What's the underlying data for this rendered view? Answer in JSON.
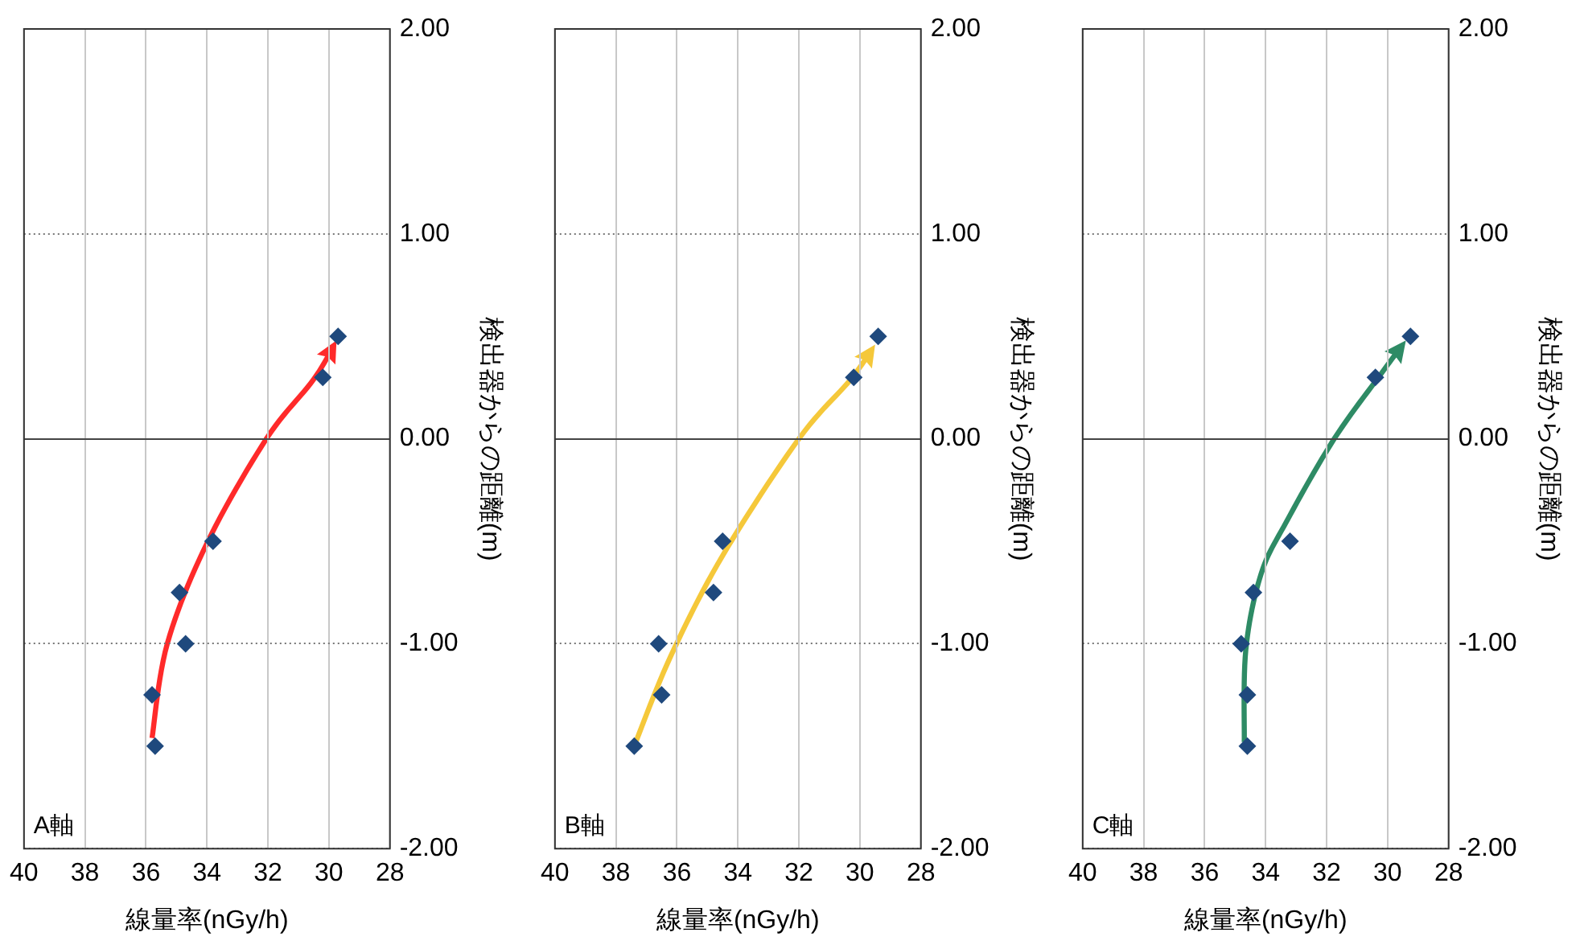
{
  "chart_data": [
    {
      "type": "scatter",
      "title": "A軸",
      "xlabel": "線量率(nGy/h)",
      "ylabel": "検出器からの距離(m)",
      "xlim": [
        40,
        28
      ],
      "xticks": [
        40,
        38,
        36,
        34,
        32,
        30,
        28
      ],
      "ylim": [
        -2,
        2
      ],
      "yticks": [
        {
          "value": -2,
          "label": "-2.00"
        },
        {
          "value": -1,
          "label": "-1.00"
        },
        {
          "value": 0,
          "label": "0.00"
        },
        {
          "value": 1,
          "label": "1.00"
        },
        {
          "value": 2,
          "label": "2.00"
        }
      ],
      "grid": true,
      "legend": false,
      "series": [
        {
          "type": "scatter",
          "color": "#1f497d",
          "marker": "diamond",
          "x": [
            35.7,
            35.8,
            34.7,
            34.9,
            33.8,
            30.2,
            29.7
          ],
          "values": [
            -1.5,
            -1.25,
            -1.0,
            -0.75,
            -0.5,
            0.3,
            0.5
          ]
        }
      ]
    },
    {
      "type": "scatter",
      "title": "B軸",
      "xlabel": "線量率(nGy/h)",
      "ylabel": "検出器からの距離(m)",
      "xlim": [
        40,
        28
      ],
      "xticks": [
        40,
        38,
        36,
        34,
        32,
        30,
        28
      ],
      "ylim": [
        -2,
        2
      ],
      "yticks": [
        {
          "value": -2,
          "label": "-2.00"
        },
        {
          "value": -1,
          "label": "-1.00"
        },
        {
          "value": 0,
          "label": "0.00"
        },
        {
          "value": 1,
          "label": "1.00"
        },
        {
          "value": 2,
          "label": "2.00"
        }
      ],
      "grid": true,
      "legend": false,
      "series": [
        {
          "type": "scatter",
          "color": "#1f497d",
          "marker": "diamond",
          "x": [
            37.4,
            36.5,
            36.6,
            34.8,
            34.5,
            30.2,
            29.4
          ],
          "values": [
            -1.5,
            -1.25,
            -1.0,
            -0.75,
            -0.5,
            0.3,
            0.5
          ]
        }
      ]
    },
    {
      "type": "scatter",
      "title": "C軸",
      "xlabel": "線量率(nGy/h)",
      "ylabel": "検出器からの距離(m)",
      "xlim": [
        40,
        28
      ],
      "xticks": [
        40,
        38,
        36,
        34,
        32,
        30,
        28
      ],
      "ylim": [
        -2,
        2
      ],
      "yticks": [
        {
          "value": -2,
          "label": "-2.00"
        },
        {
          "value": -1,
          "label": "-1.00"
        },
        {
          "value": 0,
          "label": "0.00"
        },
        {
          "value": 1,
          "label": "1.00"
        },
        {
          "value": 2,
          "label": "2.00"
        }
      ],
      "grid": true,
      "legend": false,
      "series": [
        {
          "type": "scatter",
          "color": "#1f497d",
          "marker": "diamond",
          "x": [
            34.6,
            34.6,
            34.8,
            34.4,
            33.2,
            30.4,
            29.25
          ],
          "values": [
            -1.5,
            -1.25,
            -1.0,
            -0.75,
            -0.5,
            0.3,
            0.5
          ]
        }
      ]
    }
  ]
}
